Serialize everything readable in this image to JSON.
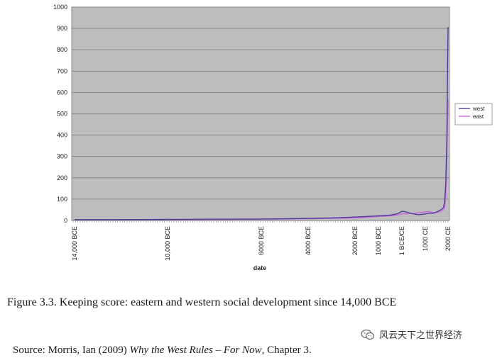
{
  "chart_data": {
    "type": "line",
    "xlabel": "date",
    "ylabel": "",
    "ylim": [
      0,
      1000
    ],
    "yticks": [
      0,
      100,
      200,
      300,
      400,
      500,
      600,
      700,
      800,
      900,
      1000
    ],
    "grid": true,
    "legend_position": "right",
    "xticks": [
      {
        "label": "14,000 BCE",
        "year": -14000
      },
      {
        "label": "10,000 BCE",
        "year": -10000
      },
      {
        "label": "6000 BCE",
        "year": -6000
      },
      {
        "label": "4000 BCE",
        "year": -4000
      },
      {
        "label": "2000 BCE",
        "year": -2000
      },
      {
        "label": "1000 BCE",
        "year": -1000
      },
      {
        "label": "1 BCE/CE",
        "year": 0
      },
      {
        "label": "1000 CE",
        "year": 1000
      },
      {
        "label": "2000 CE",
        "year": 2000
      }
    ],
    "series": [
      {
        "name": "west",
        "color": "#4b3f9a",
        "points": [
          [
            -14000,
            4
          ],
          [
            -12000,
            4
          ],
          [
            -10000,
            5
          ],
          [
            -8000,
            6
          ],
          [
            -6000,
            7
          ],
          [
            -5000,
            8
          ],
          [
            -4000,
            10
          ],
          [
            -3000,
            12
          ],
          [
            -2000,
            16
          ],
          [
            -1500,
            19
          ],
          [
            -1000,
            22
          ],
          [
            -500,
            25
          ],
          [
            -250,
            30
          ],
          [
            -100,
            36
          ],
          [
            0,
            43
          ],
          [
            100,
            42
          ],
          [
            300,
            36
          ],
          [
            500,
            31
          ],
          [
            700,
            27
          ],
          [
            900,
            29
          ],
          [
            1000,
            31
          ],
          [
            1100,
            33
          ],
          [
            1200,
            35
          ],
          [
            1300,
            33
          ],
          [
            1400,
            36
          ],
          [
            1500,
            40
          ],
          [
            1600,
            46
          ],
          [
            1700,
            51
          ],
          [
            1800,
            60
          ],
          [
            1850,
            90
          ],
          [
            1900,
            170
          ],
          [
            1950,
            400
          ],
          [
            2000,
            906
          ]
        ]
      },
      {
        "name": "east",
        "color": "#cc66dd",
        "points": [
          [
            -14000,
            4
          ],
          [
            -12000,
            4
          ],
          [
            -10000,
            4
          ],
          [
            -8000,
            5
          ],
          [
            -6000,
            6
          ],
          [
            -5000,
            7
          ],
          [
            -4000,
            8
          ],
          [
            -3000,
            10
          ],
          [
            -2000,
            12
          ],
          [
            -1500,
            15
          ],
          [
            -1000,
            18
          ],
          [
            -500,
            22
          ],
          [
            -250,
            25
          ],
          [
            -100,
            28
          ],
          [
            0,
            30
          ],
          [
            100,
            31
          ],
          [
            300,
            32
          ],
          [
            500,
            33
          ],
          [
            700,
            36
          ],
          [
            900,
            38
          ],
          [
            1000,
            40
          ],
          [
            1100,
            42
          ],
          [
            1200,
            41
          ],
          [
            1300,
            38
          ],
          [
            1400,
            36
          ],
          [
            1500,
            38
          ],
          [
            1600,
            40
          ],
          [
            1700,
            44
          ],
          [
            1800,
            50
          ],
          [
            1850,
            60
          ],
          [
            1900,
            110
          ],
          [
            1950,
            300
          ],
          [
            2000,
            570
          ]
        ]
      }
    ]
  },
  "caption": {
    "text": "Figure 3.3.  Keeping score: eastern and western social development since 14,000 BCE"
  },
  "source": {
    "prefix": "Source: Morris, Ian (2009) ",
    "title": "Why the West Rules – For Now",
    "suffix": ", Chapter 3."
  },
  "watermark": {
    "text": "风云天下之世界经济",
    "icon": "wechat-icon"
  }
}
